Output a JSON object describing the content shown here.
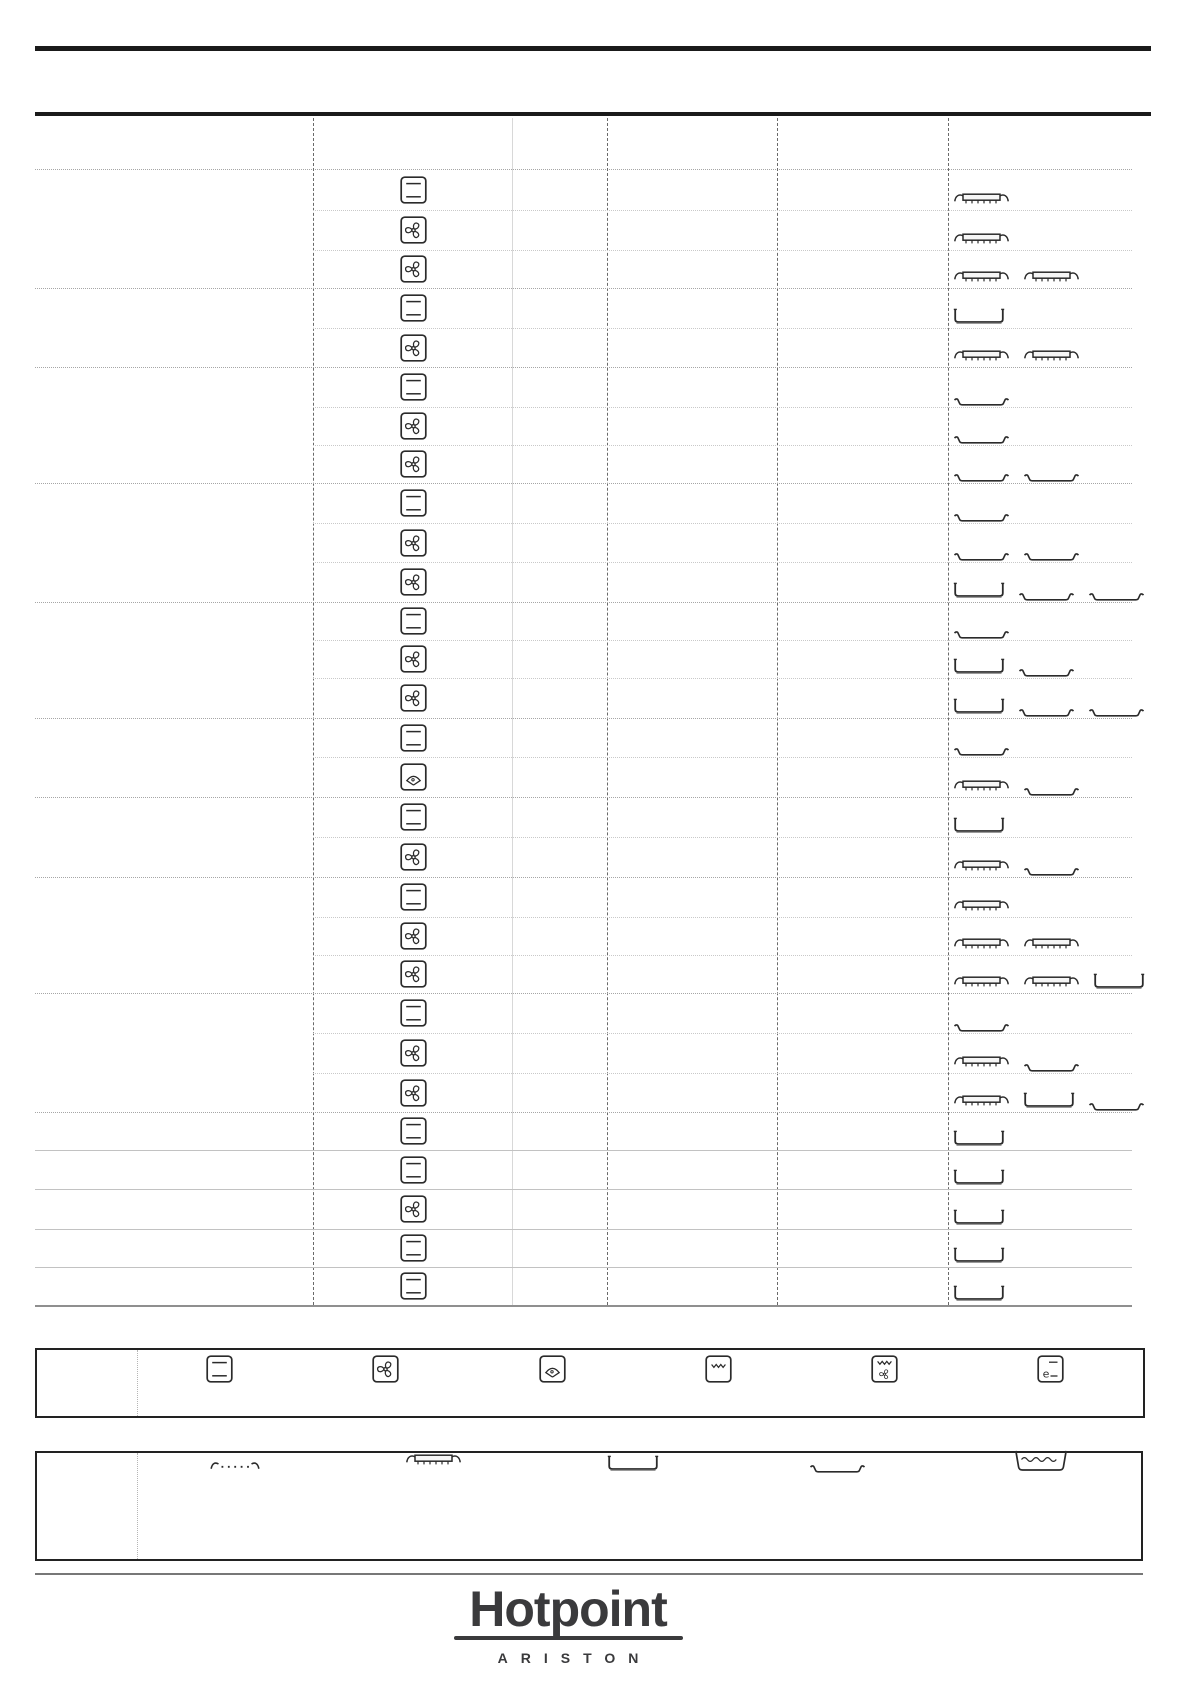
{
  "brand": {
    "name": "Hotpoint",
    "sub": "ARISTON"
  },
  "table": {
    "description": "cooking-table-with-blank-text-cells",
    "rows": [
      {
        "function": "static-oven",
        "accessories": [
          "wire-rack"
        ]
      },
      {
        "function": "fan-oven",
        "accessories": [
          "wire-rack"
        ]
      },
      {
        "function": "fan-oven",
        "accessories": [
          "wire-rack",
          "wire-rack"
        ]
      },
      {
        "function": "static-oven",
        "accessories": [
          "deep-tray"
        ]
      },
      {
        "function": "fan-oven",
        "accessories": [
          "wire-rack",
          "wire-rack"
        ]
      },
      {
        "function": "static-oven",
        "accessories": [
          "shallow-tray"
        ]
      },
      {
        "function": "fan-oven",
        "accessories": [
          "shallow-tray"
        ]
      },
      {
        "function": "fan-oven",
        "accessories": [
          "shallow-tray",
          "shallow-tray"
        ]
      },
      {
        "function": "static-oven",
        "accessories": [
          "shallow-tray"
        ]
      },
      {
        "function": "fan-oven",
        "accessories": [
          "shallow-tray",
          "shallow-tray"
        ]
      },
      {
        "function": "fan-oven",
        "accessories": [
          "deep-tray",
          "shallow-tray",
          "shallow-tray"
        ]
      },
      {
        "function": "static-oven",
        "accessories": [
          "shallow-tray"
        ]
      },
      {
        "function": "fan-oven",
        "accessories": [
          "deep-tray",
          "shallow-tray"
        ]
      },
      {
        "function": "fan-oven",
        "accessories": [
          "deep-tray",
          "shallow-tray",
          "shallow-tray"
        ]
      },
      {
        "function": "static-oven",
        "accessories": [
          "shallow-tray"
        ]
      },
      {
        "function": "pizza",
        "accessories": [
          "wire-rack",
          "shallow-tray"
        ]
      },
      {
        "function": "static-oven",
        "accessories": [
          "deep-tray"
        ]
      },
      {
        "function": "fan-oven",
        "accessories": [
          "wire-rack",
          "shallow-tray"
        ]
      },
      {
        "function": "static-oven",
        "accessories": [
          "wire-rack"
        ]
      },
      {
        "function": "fan-oven",
        "accessories": [
          "wire-rack",
          "wire-rack"
        ]
      },
      {
        "function": "fan-oven",
        "accessories": [
          "wire-rack",
          "wire-rack",
          "deep-tray"
        ]
      },
      {
        "function": "static-oven",
        "accessories": [
          "shallow-tray"
        ]
      },
      {
        "function": "fan-oven",
        "accessories": [
          "wire-rack",
          "shallow-tray"
        ]
      },
      {
        "function": "fan-oven",
        "accessories": [
          "wire-rack",
          "deep-tray",
          "shallow-tray"
        ]
      },
      {
        "function": "static-oven",
        "accessories": [
          "deep-tray"
        ]
      },
      {
        "function": "static-oven",
        "accessories": [
          "deep-tray"
        ]
      },
      {
        "function": "fan-oven",
        "accessories": [
          "deep-tray"
        ]
      },
      {
        "function": "static-oven",
        "accessories": [
          "deep-tray"
        ]
      },
      {
        "function": "static-oven",
        "accessories": [
          "deep-tray"
        ]
      }
    ]
  },
  "legend_functions": {
    "icons": [
      "static-oven",
      "fan-oven",
      "pizza",
      "grill",
      "grill-fan",
      "eco"
    ]
  },
  "legend_accessories": {
    "icons": [
      "shelf-rails",
      "wire-rack",
      "deep-tray",
      "shallow-tray",
      "water-bath-tray"
    ]
  },
  "colors": {
    "rule": "#1a1a1a",
    "icon_stroke": "#2b2b2b",
    "row_line": "#c9c9c9",
    "group_line": "#a6a6a6",
    "logo": "#3a3a3c"
  }
}
